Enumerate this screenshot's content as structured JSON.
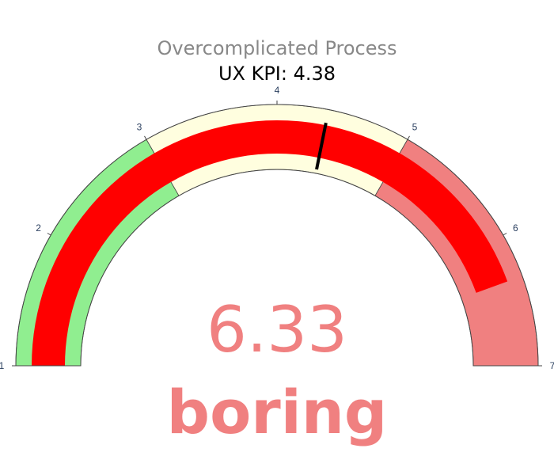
{
  "chart_data": {
    "type": "gauge",
    "title": "Overcomplicated Process",
    "subtitle": "UX KPI: 4.38",
    "axis_range": [
      1,
      7
    ],
    "ticks": [
      "1",
      "2",
      "3",
      "4",
      "5",
      "6",
      "7"
    ],
    "steps": [
      {
        "range": [
          1,
          3
        ],
        "color": "#90ee90"
      },
      {
        "range": [
          3,
          5
        ],
        "color": "#fffedf"
      },
      {
        "range": [
          5,
          7
        ],
        "color": "#f08080"
      }
    ],
    "bar": {
      "value": 6.33,
      "color": "#ff0000"
    },
    "threshold": {
      "value": 4.38,
      "color": "#000000"
    },
    "value_text": "6.33",
    "value_label": "boring",
    "value_color": "#f08080",
    "title_color": "#888888",
    "subtitle_color": "#000000",
    "tick_color": "#2a3f5f"
  }
}
